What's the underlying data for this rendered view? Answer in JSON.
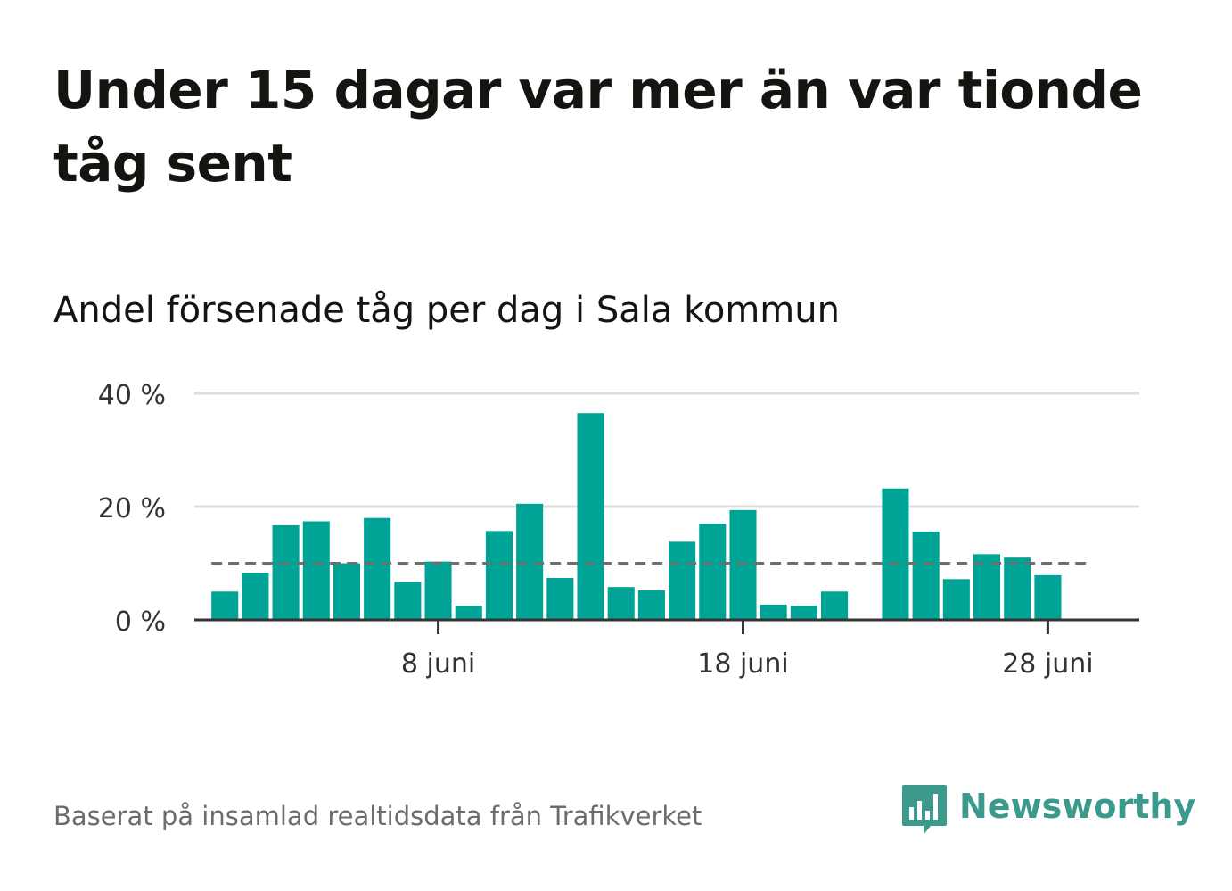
{
  "title": "Under 15 dagar var mer än var tionde tåg sent",
  "subtitle": "Andel försenade tåg per dag i Sala kommun",
  "source": "Baserat på insamlad realtidsdata från Trafikverket",
  "brand": {
    "name": "Newsworthy",
    "icon": "newsworthy-logo-icon",
    "color": "#3c9a8c"
  },
  "colors": {
    "bar": "#00a497",
    "grid": "#dddddd",
    "axis": "#333333",
    "reference": "#6e6e6e",
    "text": "#333333"
  },
  "chart_data": {
    "type": "bar",
    "title": "Andel försenade tåg per dag i Sala kommun",
    "x_unit": "day of June",
    "x_range": [
      0,
      31
    ],
    "ylim": [
      0,
      40
    ],
    "y_ticks": [
      {
        "value": 0,
        "label": "0 %"
      },
      {
        "value": 20,
        "label": "20 %"
      },
      {
        "value": 40,
        "label": "40 %"
      }
    ],
    "x_ticks": [
      {
        "value": 8,
        "label": "8 juni"
      },
      {
        "value": 18,
        "label": "18 juni"
      },
      {
        "value": 28,
        "label": "28 juni"
      }
    ],
    "reference_line": 10,
    "grid": true,
    "days": [
      1,
      2,
      3,
      4,
      5,
      6,
      7,
      8,
      9,
      10,
      11,
      12,
      13,
      14,
      15,
      16,
      17,
      18,
      19,
      20,
      21,
      22,
      23,
      24,
      25,
      26,
      27,
      28,
      29
    ],
    "values": [
      5.0,
      8.3,
      16.7,
      17.4,
      10.0,
      18.0,
      6.7,
      10.3,
      2.5,
      15.7,
      20.5,
      7.4,
      36.5,
      5.8,
      5.2,
      13.8,
      17.0,
      19.4,
      2.7,
      2.5,
      5.0,
      null,
      23.2,
      15.6,
      7.2,
      11.6,
      11.0,
      7.9,
      null
    ]
  }
}
